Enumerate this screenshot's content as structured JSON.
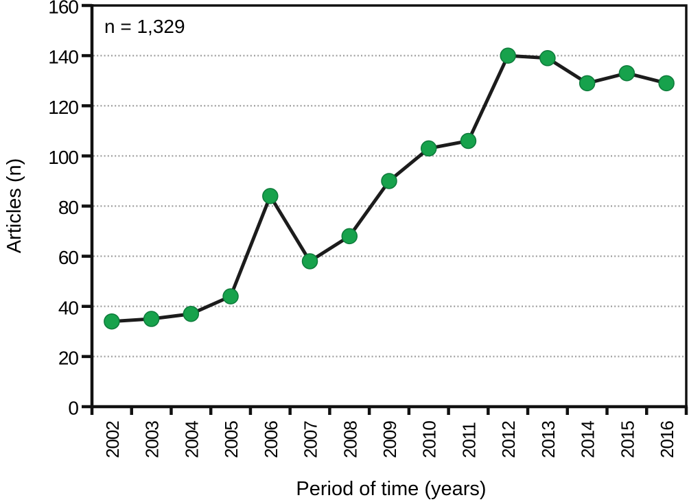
{
  "chart_data": {
    "type": "line",
    "title": "",
    "annotation": "n = 1,329",
    "xlabel": "Period of time (years)",
    "ylabel": "Articles (n)",
    "categories": [
      "2002",
      "2003",
      "2004",
      "2005",
      "2006",
      "2007",
      "2008",
      "2009",
      "2010",
      "2011",
      "2012",
      "2013",
      "2014",
      "2015",
      "2016"
    ],
    "series": [
      {
        "name": "Articles",
        "values": [
          34,
          35,
          37,
          44,
          84,
          58,
          68,
          90,
          103,
          106,
          140,
          139,
          129,
          133,
          129
        ]
      }
    ],
    "total_n": "1,329",
    "ylim": [
      0,
      160
    ],
    "ytick_step": 20,
    "yticks": [
      0,
      20,
      40,
      60,
      80,
      100,
      120,
      140,
      160
    ],
    "grid": "horizontal-dotted",
    "legend": "none",
    "colors": {
      "line": "#1c1c1c",
      "marker": "#17a24c",
      "marker_edge": "#0d7a3a",
      "grid": "#a6a6a6",
      "axis": "#111111",
      "text": "#000000",
      "background": "#ffffff"
    }
  }
}
